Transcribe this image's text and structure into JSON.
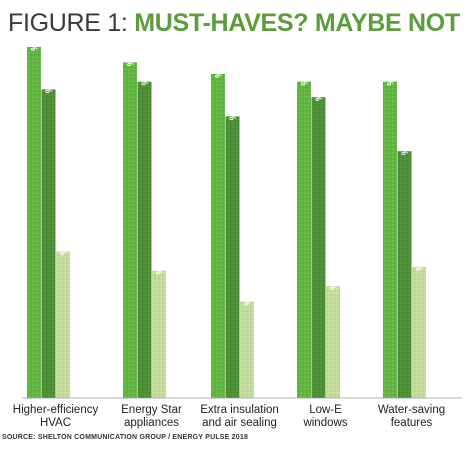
{
  "title": {
    "prefix": "FIGURE 1:",
    "main": "MUST-HAVES? MAYBE NOT"
  },
  "source": "SOURCE: SHELTON COMMUNICATION GROUP / ENERGY PULSE 2018",
  "colors": {
    "title_accent": "#5a9e3a",
    "series": [
      "#63b543",
      "#4e8f37",
      "#c2dc9a"
    ],
    "baseline": "#999999"
  },
  "chart_data": {
    "type": "bar",
    "categories": [
      [
        "Higher-efficiency",
        "HVAC"
      ],
      [
        "Energy Star",
        "appliances"
      ],
      [
        "Extra insulation",
        "and air sealing"
      ],
      [
        "Low-E",
        "windows"
      ],
      [
        "Water-saving",
        "features"
      ]
    ],
    "series": [
      {
        "values": [
          91,
          87,
          84,
          82,
          82
        ],
        "labels": [
          "91%",
          "87%",
          "84%",
          "82%",
          "82%"
        ]
      },
      {
        "values": [
          80,
          82,
          73,
          78,
          64
        ],
        "labels": [
          "80%",
          "82%",
          "73%",
          "78%",
          "64%"
        ]
      },
      {
        "values": [
          38,
          33,
          25,
          29,
          34
        ],
        "labels": [
          "38%",
          "33%",
          "25%",
          "29%",
          "34%"
        ]
      }
    ],
    "ylim": [
      0,
      91
    ],
    "grid": false,
    "legend": "none"
  }
}
